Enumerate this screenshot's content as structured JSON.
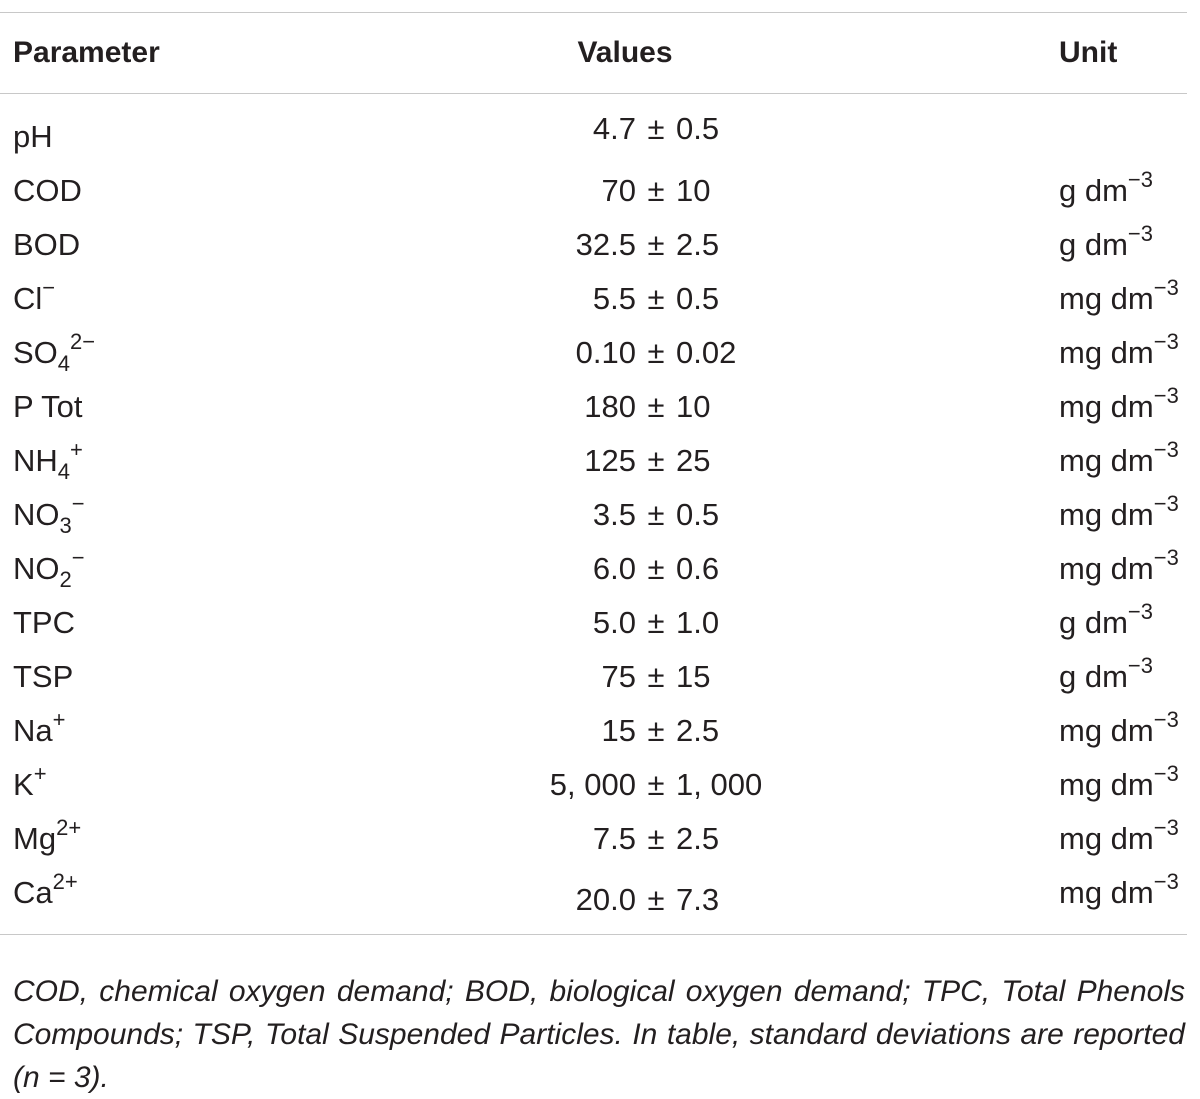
{
  "table": {
    "headers": {
      "parameter": "Parameter",
      "values": "Values",
      "unit": "Unit"
    },
    "rows": [
      {
        "param_base": "pH",
        "param_sub": "",
        "param_sup": "",
        "value": "4.7",
        "sd": "0.5",
        "unit_base": "",
        "unit_sup": ""
      },
      {
        "param_base": "COD",
        "param_sub": "",
        "param_sup": "",
        "value": "70",
        "sd": "10",
        "unit_base": "g dm",
        "unit_sup": "−3"
      },
      {
        "param_base": "BOD",
        "param_sub": "",
        "param_sup": "",
        "value": "32.5",
        "sd": "2.5",
        "unit_base": "g dm",
        "unit_sup": "−3"
      },
      {
        "param_base": "Cl",
        "param_sub": "",
        "param_sup": "−",
        "value": "5.5",
        "sd": "0.5",
        "unit_base": "mg dm",
        "unit_sup": "−3"
      },
      {
        "param_base": "SO",
        "param_sub": "4",
        "param_sup": "2−",
        "value": "0.10",
        "sd": "0.02",
        "unit_base": "mg dm",
        "unit_sup": "−3"
      },
      {
        "param_base": "P Tot",
        "param_sub": "",
        "param_sup": "",
        "value": "180",
        "sd": "10",
        "unit_base": "mg dm",
        "unit_sup": "−3"
      },
      {
        "param_base": "NH",
        "param_sub": "4",
        "param_sup": "+",
        "value": "125",
        "sd": "25",
        "unit_base": "mg dm",
        "unit_sup": "−3"
      },
      {
        "param_base": "NO",
        "param_sub": "3",
        "param_sup": "−",
        "value": "3.5",
        "sd": "0.5",
        "unit_base": "mg dm",
        "unit_sup": "−3"
      },
      {
        "param_base": "NO",
        "param_sub": "2",
        "param_sup": "−",
        "value": "6.0",
        "sd": "0.6",
        "unit_base": "mg dm",
        "unit_sup": "−3"
      },
      {
        "param_base": "TPC",
        "param_sub": "",
        "param_sup": "",
        "value": "5.0",
        "sd": "1.0",
        "unit_base": "g dm",
        "unit_sup": "−3"
      },
      {
        "param_base": "TSP",
        "param_sub": "",
        "param_sup": "",
        "value": "75",
        "sd": "15",
        "unit_base": "g dm",
        "unit_sup": "−3"
      },
      {
        "param_base": "Na",
        "param_sub": "",
        "param_sup": "+",
        "value": "15",
        "sd": "2.5",
        "unit_base": "mg dm",
        "unit_sup": "−3"
      },
      {
        "param_base": "K",
        "param_sub": "",
        "param_sup": "+",
        "value": "5, 000",
        "sd": "1, 000",
        "unit_base": "mg dm",
        "unit_sup": "−3"
      },
      {
        "param_base": "Mg",
        "param_sub": "",
        "param_sup": "2+",
        "value": "7.5",
        "sd": "2.5",
        "unit_base": "mg dm",
        "unit_sup": "−3"
      },
      {
        "param_base": "Ca",
        "param_sub": "",
        "param_sup": "2+",
        "value": "20.0",
        "sd": "7.3",
        "unit_base": "mg dm",
        "unit_sup": "−3"
      }
    ],
    "pm_symbol": "±"
  },
  "footnote": "COD, chemical oxygen demand; BOD, biological oxygen demand; TPC, Total Phenols Compounds; TSP, Total Suspended Particles. In table, standard deviations are reported (n = 3)."
}
